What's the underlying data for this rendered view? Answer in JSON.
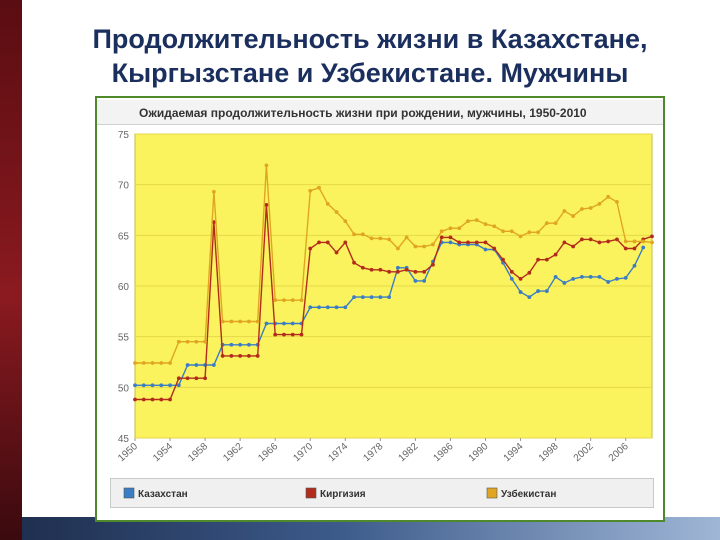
{
  "slide": {
    "title_line1": "Продолжительность жизни в Казахстане,",
    "title_line2": "Кыргызстане и Узбекистане. Мужчины"
  },
  "colors": {
    "plot_bg": "#fbf35e",
    "grid": "#e6d84a",
    "kazakhstan": "#3b7dc4",
    "kyrgyzstan": "#b22c1c",
    "uzbekistan": "#e0a521",
    "title_blue": "#1b2f5e",
    "frame_green": "#4e8a2c"
  },
  "chart_data": {
    "type": "line",
    "title": "Ожидаемая продолжительность жизни при рождении, мужчины, 1950-2010",
    "xlabel": "",
    "ylabel": "",
    "xlim": [
      1950,
      2009
    ],
    "ylim": [
      45,
      75
    ],
    "y_ticks": [
      "45",
      "50",
      "55",
      "60",
      "65",
      "70",
      "75"
    ],
    "x_ticks": [
      "1950",
      "1954",
      "1958",
      "1962",
      "1966",
      "1970",
      "1974",
      "1978",
      "1982",
      "1986",
      "1990",
      "1994",
      "1998",
      "2002",
      "2006"
    ],
    "grid": true,
    "legend_position": "bottom",
    "x": [
      1950,
      1951,
      1952,
      1953,
      1954,
      1955,
      1956,
      1957,
      1958,
      1959,
      1960,
      1961,
      1962,
      1963,
      1964,
      1965,
      1966,
      1967,
      1968,
      1969,
      1970,
      1971,
      1972,
      1973,
      1974,
      1975,
      1976,
      1977,
      1978,
      1979,
      1980,
      1981,
      1982,
      1983,
      1984,
      1985,
      1986,
      1987,
      1988,
      1989,
      1990,
      1991,
      1992,
      1993,
      1994,
      1995,
      1996,
      1997,
      1998,
      1999,
      2000,
      2001,
      2002,
      2003,
      2004,
      2005,
      2006,
      2007,
      2008,
      2009
    ],
    "series": [
      {
        "name": "Казахстан",
        "color": "#3b7dc4",
        "values": [
          50.2,
          50.2,
          50.2,
          50.2,
          50.2,
          50.2,
          52.2,
          52.2,
          52.2,
          52.2,
          54.2,
          54.2,
          54.2,
          54.2,
          54.2,
          56.3,
          56.3,
          56.3,
          56.3,
          56.3,
          57.9,
          57.9,
          57.9,
          57.9,
          57.9,
          58.9,
          58.9,
          58.9,
          58.9,
          58.9,
          61.8,
          61.8,
          60.5,
          60.5,
          62.4,
          64.3,
          64.3,
          64.1,
          64.1,
          64.1,
          63.6,
          63.6,
          62.3,
          60.7,
          59.4,
          58.9,
          59.5,
          59.5,
          60.9,
          60.3,
          60.7,
          60.9,
          60.9,
          60.9,
          60.4,
          60.7,
          60.8,
          62.0,
          63.8,
          null
        ]
      },
      {
        "name": "Киргизия",
        "color": "#b22c1c",
        "values": [
          48.8,
          48.8,
          48.8,
          48.8,
          48.8,
          50.9,
          50.9,
          50.9,
          50.9,
          66.3,
          53.1,
          53.1,
          53.1,
          53.1,
          53.1,
          68.0,
          55.2,
          55.2,
          55.2,
          55.2,
          63.7,
          64.3,
          64.3,
          63.3,
          64.3,
          62.3,
          61.8,
          61.6,
          61.6,
          61.4,
          61.4,
          61.6,
          61.4,
          61.4,
          62.1,
          64.8,
          64.8,
          64.3,
          64.3,
          64.3,
          64.3,
          63.7,
          62.6,
          61.4,
          60.7,
          61.3,
          62.6,
          62.6,
          63.1,
          64.3,
          63.9,
          64.6,
          64.6,
          64.3,
          64.4,
          64.6,
          63.7,
          63.7,
          64.6,
          64.9
        ]
      },
      {
        "name": "Узбекистан",
        "color": "#e0a521",
        "values": [
          52.4,
          52.4,
          52.4,
          52.4,
          52.4,
          54.5,
          54.5,
          54.5,
          54.5,
          69.3,
          56.5,
          56.5,
          56.5,
          56.5,
          56.5,
          71.9,
          58.6,
          58.6,
          58.6,
          58.6,
          69.4,
          69.7,
          68.1,
          67.3,
          66.4,
          65.1,
          65.1,
          64.7,
          64.7,
          64.6,
          63.7,
          64.8,
          63.9,
          63.9,
          64.1,
          65.4,
          65.7,
          65.7,
          66.4,
          66.5,
          66.1,
          65.9,
          65.4,
          65.4,
          64.9,
          65.3,
          65.3,
          66.2,
          66.2,
          67.4,
          66.9,
          67.6,
          67.7,
          68.1,
          68.8,
          68.3,
          64.4,
          64.4,
          64.4,
          64.3
        ]
      }
    ]
  }
}
